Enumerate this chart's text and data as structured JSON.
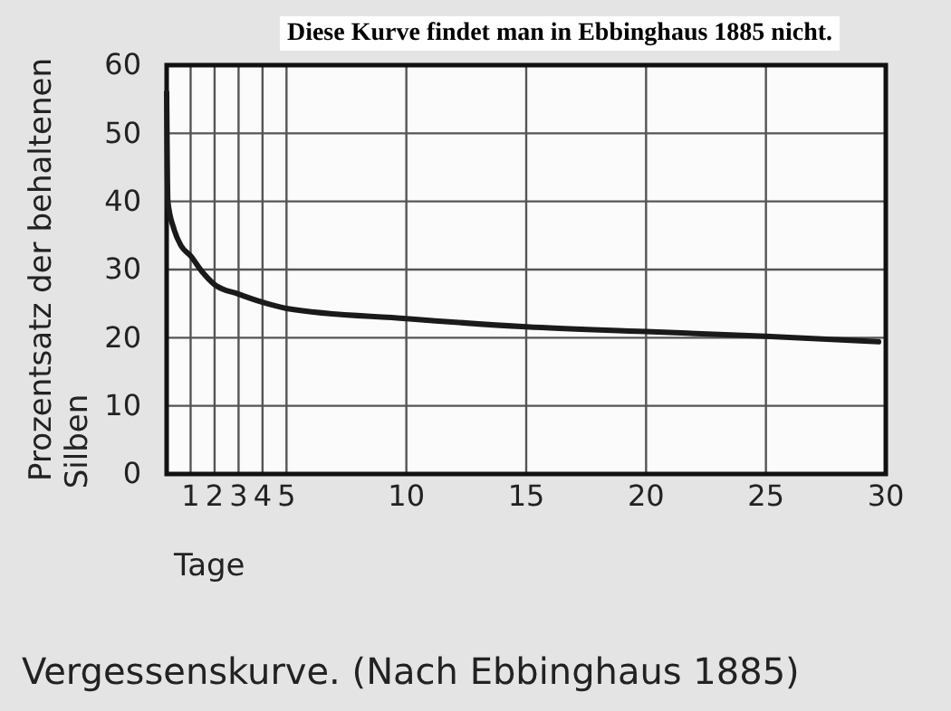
{
  "chart_data": {
    "type": "line",
    "title": "Vergessenskurve. (Nach Ebbinghaus 1885)",
    "xlabel": "Tage",
    "ylabel": "Prozentsatz der behaltenen Silben",
    "annotations": [
      "Diese Kurve findet man in Ebbinghaus 1885 nicht."
    ],
    "x": [
      0,
      0.05,
      0.3,
      0.6,
      1,
      1.5,
      2,
      3,
      4,
      5,
      10,
      15,
      20,
      25,
      29.7
    ],
    "series": [
      {
        "color": "#1a1a1a",
        "values": [
          56,
          40,
          36,
          33.5,
          32,
          29.6,
          27.8,
          26.4,
          25.2,
          24.3,
          22.8,
          21.6,
          20.9,
          20.2,
          19.4
        ]
      }
    ],
    "xlim": [
      0,
      30
    ],
    "xticks": [
      {
        "value": 0,
        "label": null
      },
      1,
      2,
      3,
      4,
      5,
      10,
      15,
      20,
      25,
      30
    ],
    "ylim": [
      0,
      60
    ],
    "yticks": [
      0,
      10,
      20,
      30,
      40,
      50,
      60
    ],
    "grid": true,
    "marker": "none",
    "line_style": "solid"
  }
}
